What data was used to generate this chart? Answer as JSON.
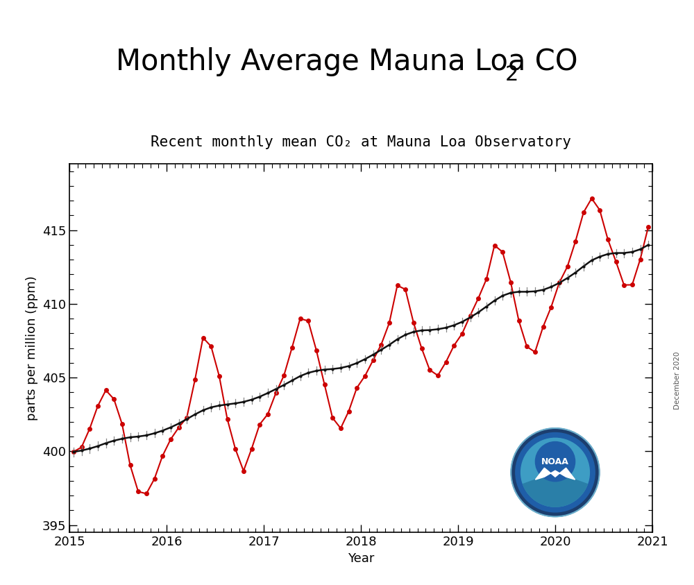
{
  "title_part1": "Monthly Average Mauna Loa CO",
  "title_sub": "2",
  "subtitle": "Recent monthly mean CO₂ at Mauna Loa Observatory",
  "xlabel": "Year",
  "ylabel": "parts per million (ppm)",
  "xlim": [
    2015.0,
    2021.0
  ],
  "ylim": [
    394.5,
    419.5
  ],
  "yticks": [
    395,
    400,
    405,
    410,
    415
  ],
  "xticks": [
    2015,
    2016,
    2017,
    2018,
    2019,
    2020,
    2021
  ],
  "title_fontsize": 30,
  "subtitle_fontsize": 15,
  "axis_fontsize": 13,
  "tick_fontsize": 13,
  "background_color": "#ffffff",
  "monthly_x": [
    2015.042,
    2015.125,
    2015.208,
    2015.292,
    2015.375,
    2015.458,
    2015.542,
    2015.625,
    2015.708,
    2015.792,
    2015.875,
    2015.958,
    2016.042,
    2016.125,
    2016.208,
    2016.292,
    2016.375,
    2016.458,
    2016.542,
    2016.625,
    2016.708,
    2016.792,
    2016.875,
    2016.958,
    2017.042,
    2017.125,
    2017.208,
    2017.292,
    2017.375,
    2017.458,
    2017.542,
    2017.625,
    2017.708,
    2017.792,
    2017.875,
    2017.958,
    2018.042,
    2018.125,
    2018.208,
    2018.292,
    2018.375,
    2018.458,
    2018.542,
    2018.625,
    2018.708,
    2018.792,
    2018.875,
    2018.958,
    2019.042,
    2019.125,
    2019.208,
    2019.292,
    2019.375,
    2019.458,
    2019.542,
    2019.625,
    2019.708,
    2019.792,
    2019.875,
    2019.958,
    2020.042,
    2020.125,
    2020.208,
    2020.292,
    2020.375,
    2020.458,
    2020.542,
    2020.625,
    2020.708,
    2020.792,
    2020.875,
    2020.958
  ],
  "monthly_y": [
    399.96,
    400.28,
    401.52,
    403.07,
    404.14,
    403.54,
    401.85,
    399.06,
    397.27,
    397.12,
    398.13,
    399.68,
    400.81,
    401.61,
    402.29,
    404.84,
    407.7,
    407.12,
    405.1,
    402.19,
    400.16,
    398.67,
    400.16,
    401.82,
    402.52,
    403.95,
    405.14,
    407.05,
    409.0,
    408.84,
    406.84,
    404.54,
    402.27,
    401.56,
    402.72,
    404.3,
    405.11,
    406.17,
    407.22,
    408.7,
    411.25,
    410.98,
    408.72,
    406.99,
    405.52,
    405.14,
    406.05,
    407.17,
    407.98,
    409.21,
    410.37,
    411.67,
    413.97,
    413.52,
    411.47,
    408.87,
    407.1,
    406.73,
    408.44,
    409.78,
    411.44,
    412.52,
    414.23,
    416.21,
    417.15,
    416.37,
    414.37,
    412.87,
    411.28,
    411.29,
    413.02,
    415.22
  ],
  "trend_x": [
    2015.042,
    2015.125,
    2015.208,
    2015.292,
    2015.375,
    2015.458,
    2015.542,
    2015.625,
    2015.708,
    2015.792,
    2015.875,
    2015.958,
    2016.042,
    2016.125,
    2016.208,
    2016.292,
    2016.375,
    2016.458,
    2016.542,
    2016.625,
    2016.708,
    2016.792,
    2016.875,
    2016.958,
    2017.042,
    2017.125,
    2017.208,
    2017.292,
    2017.375,
    2017.458,
    2017.542,
    2017.625,
    2017.708,
    2017.792,
    2017.875,
    2017.958,
    2018.042,
    2018.125,
    2018.208,
    2018.292,
    2018.375,
    2018.458,
    2018.542,
    2018.625,
    2018.708,
    2018.792,
    2018.875,
    2018.958,
    2019.042,
    2019.125,
    2019.208,
    2019.292,
    2019.375,
    2019.458,
    2019.542,
    2019.625,
    2019.708,
    2019.792,
    2019.875,
    2019.958,
    2020.042,
    2020.125,
    2020.208,
    2020.292,
    2020.375,
    2020.458,
    2020.542,
    2020.625,
    2020.708,
    2020.792,
    2020.875,
    2020.958
  ],
  "trend_y": [
    399.96,
    400.05,
    400.18,
    400.35,
    400.55,
    400.72,
    400.85,
    400.95,
    401.0,
    401.08,
    401.22,
    401.4,
    401.62,
    401.88,
    402.18,
    402.5,
    402.78,
    402.98,
    403.1,
    403.18,
    403.25,
    403.35,
    403.5,
    403.7,
    403.95,
    404.22,
    404.5,
    404.8,
    405.1,
    405.32,
    405.46,
    405.54,
    405.58,
    405.65,
    405.78,
    405.98,
    406.25,
    406.55,
    406.88,
    407.22,
    407.6,
    407.9,
    408.1,
    408.2,
    408.22,
    408.28,
    408.38,
    408.55,
    408.78,
    409.08,
    409.42,
    409.82,
    410.22,
    410.55,
    410.75,
    410.82,
    410.82,
    410.85,
    410.95,
    411.15,
    411.42,
    411.75,
    412.12,
    412.55,
    412.95,
    413.2,
    413.38,
    413.45,
    413.45,
    413.52,
    413.7,
    414.0
  ],
  "trend_err": [
    0.3,
    0.3,
    0.3,
    0.3,
    0.3,
    0.3,
    0.28,
    0.28,
    0.28,
    0.28,
    0.28,
    0.28,
    0.28,
    0.28,
    0.28,
    0.28,
    0.28,
    0.28,
    0.28,
    0.28,
    0.28,
    0.28,
    0.28,
    0.28,
    0.28,
    0.28,
    0.28,
    0.28,
    0.28,
    0.28,
    0.28,
    0.28,
    0.28,
    0.28,
    0.28,
    0.28,
    0.28,
    0.28,
    0.28,
    0.28,
    0.28,
    0.28,
    0.28,
    0.28,
    0.28,
    0.28,
    0.28,
    0.28,
    0.28,
    0.28,
    0.28,
    0.28,
    0.28,
    0.28,
    0.28,
    0.28,
    0.28,
    0.28,
    0.28,
    0.28,
    0.28,
    0.28,
    0.28,
    0.28,
    0.28,
    0.28,
    0.28,
    0.28,
    0.28,
    0.28,
    0.28,
    0.28
  ],
  "red_color": "#cc0000",
  "black_color": "#111111",
  "gray_color": "#888888",
  "watermark_text": "December 2020",
  "noaa_logo_color": "#1a6b9e"
}
